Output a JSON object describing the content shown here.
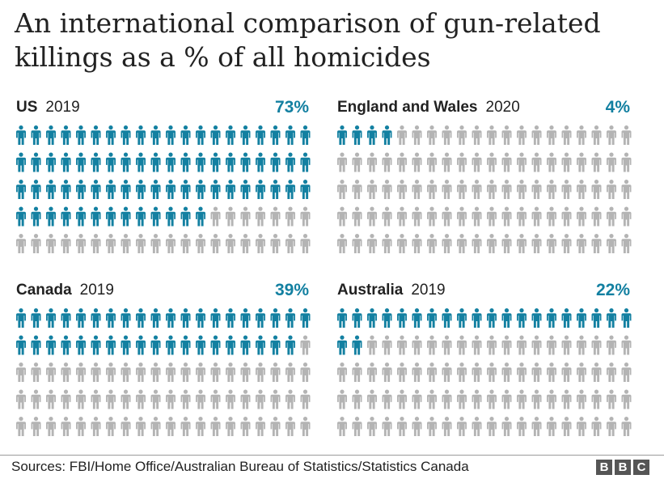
{
  "title": "An international comparison of gun-related killings as a % of all homicides",
  "source": "Sources: FBI/Home Office/Australian Bureau of Statistics/Statistics Canada",
  "logo": [
    "B",
    "B",
    "C"
  ],
  "colors": {
    "highlight": "#1380a1",
    "base": "#b4b4b4"
  },
  "icon": "person-icon",
  "chart_data": {
    "type": "pictogram",
    "title": "An international comparison of gun-related killings as a % of all homicides",
    "icons_per_panel": 100,
    "rows": 5,
    "columns": 20,
    "panels": [
      {
        "country": "US",
        "year": "2019",
        "label": "73%",
        "value": 73
      },
      {
        "country": "England and Wales",
        "year": "2020",
        "label": "4%",
        "value": 4
      },
      {
        "country": "Canada",
        "year": "2019",
        "label": "39%",
        "value": 39
      },
      {
        "country": "Australia",
        "year": "2019",
        "label": "22%",
        "value": 22
      }
    ]
  }
}
